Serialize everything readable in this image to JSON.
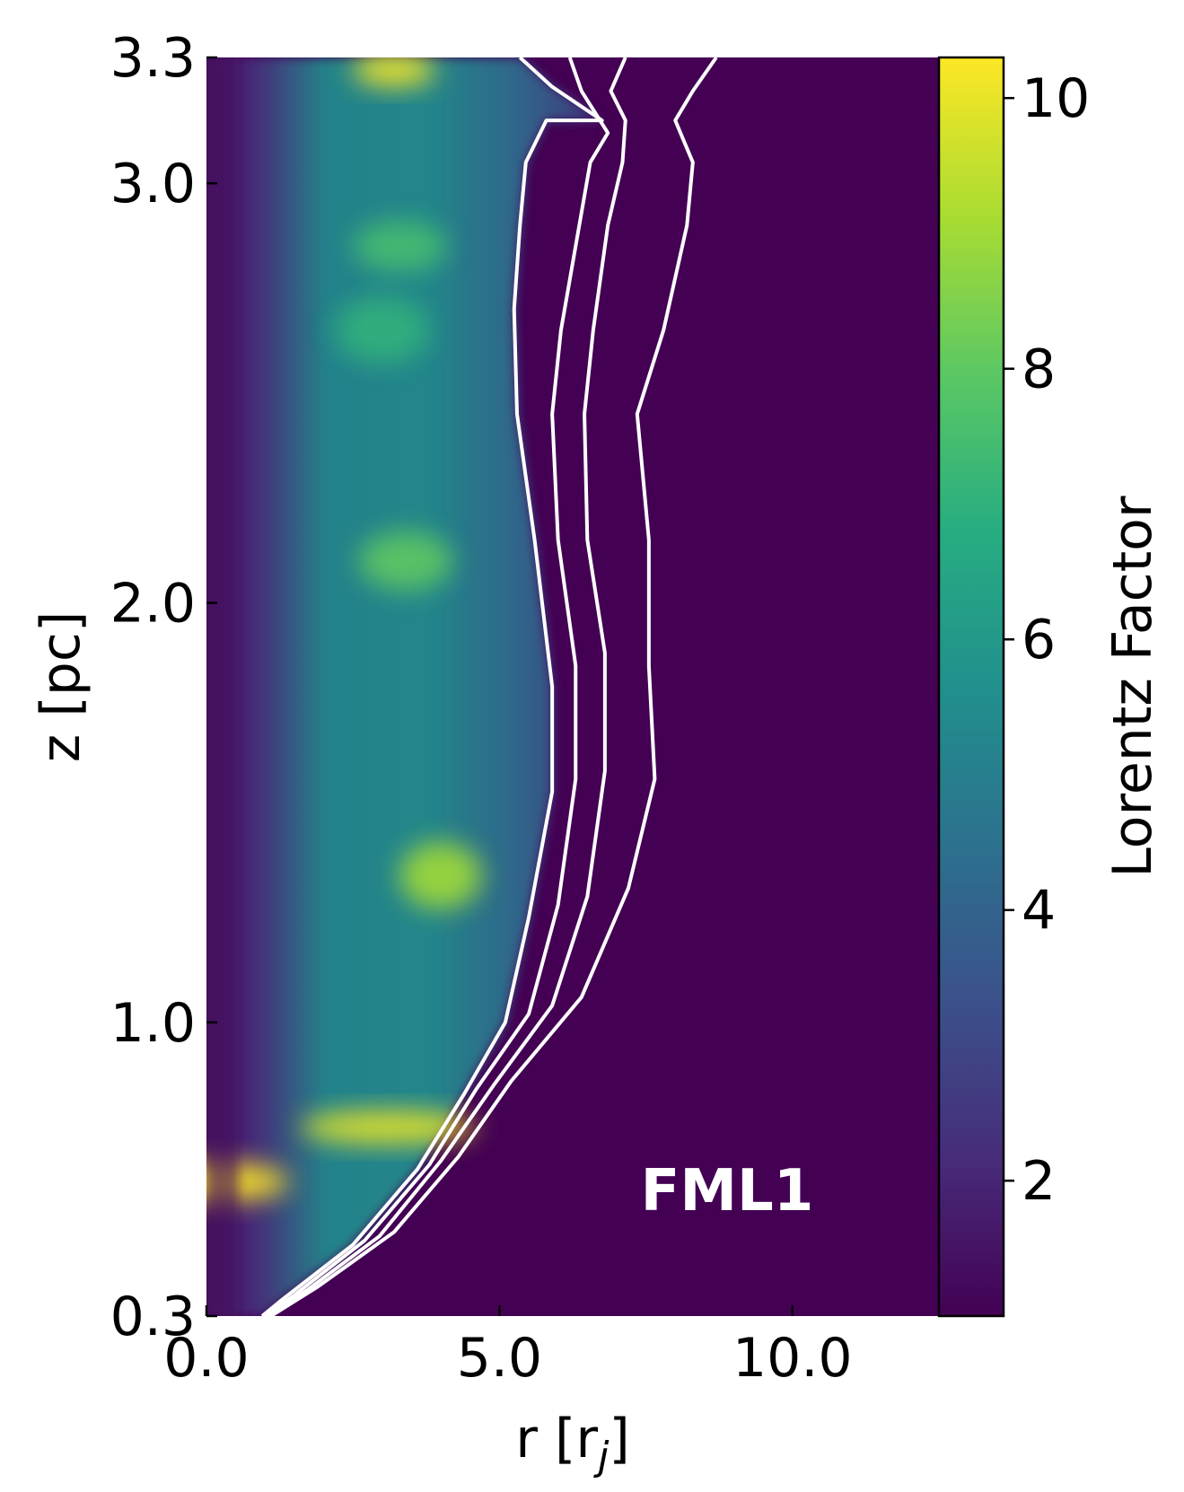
{
  "chart_data": {
    "type": "heatmap",
    "title": "",
    "annotation": "FML1",
    "xlabel": "r [r",
    "xlabel_sub": "j",
    "xlabel_close": "]",
    "ylabel": "z [pc]",
    "xlim": [
      0.0,
      12.5
    ],
    "ylim": [
      0.3,
      3.3
    ],
    "x_ticks": [
      {
        "value": 0.0,
        "label": "0.0"
      },
      {
        "value": 5.0,
        "label": "5.0"
      },
      {
        "value": 10.0,
        "label": "10.0"
      }
    ],
    "y_ticks": [
      {
        "value": 0.3,
        "label": "0.3"
      },
      {
        "value": 1.0,
        "label": "1.0"
      },
      {
        "value": 2.0,
        "label": "2.0"
      },
      {
        "value": 3.0,
        "label": "3.0"
      },
      {
        "value": 3.3,
        "label": "3.3"
      }
    ],
    "colorbar": {
      "label": "Lorentz Factor",
      "min": 1.0,
      "max": 10.3,
      "colormap": "viridis",
      "ticks": [
        {
          "value": 2,
          "label": "2"
        },
        {
          "value": 4,
          "label": "4"
        },
        {
          "value": 6,
          "label": "6"
        },
        {
          "value": 8,
          "label": "8"
        },
        {
          "value": 10,
          "label": "10"
        }
      ]
    },
    "colors": {
      "background": "#440154",
      "contour": "#ffffff",
      "annotation": "#ffffff",
      "stops": [
        "#440154",
        "#472c7a",
        "#3b518b",
        "#2c718e",
        "#21908d",
        "#27ad81",
        "#5cc863",
        "#aadc32",
        "#fde725"
      ]
    },
    "contour_lines": [
      {
        "points": [
          [
            0.95,
            0.3
          ],
          [
            1.3,
            0.34
          ],
          [
            2.5,
            0.47
          ],
          [
            3.6,
            0.65
          ],
          [
            4.4,
            0.83
          ],
          [
            5.1,
            1.0
          ],
          [
            5.5,
            1.25
          ],
          [
            5.9,
            1.55
          ],
          [
            5.9,
            1.8
          ],
          [
            5.6,
            2.15
          ],
          [
            5.3,
            2.45
          ],
          [
            5.25,
            2.7
          ],
          [
            5.35,
            2.9
          ],
          [
            5.45,
            3.05
          ],
          [
            5.8,
            3.15
          ],
          [
            6.75,
            3.15
          ],
          [
            5.9,
            3.23
          ],
          [
            5.35,
            3.3
          ]
        ]
      },
      {
        "points": [
          [
            1.0,
            0.3
          ],
          [
            1.5,
            0.35
          ],
          [
            2.7,
            0.48
          ],
          [
            3.8,
            0.66
          ],
          [
            4.6,
            0.84
          ],
          [
            5.5,
            1.02
          ],
          [
            6.0,
            1.28
          ],
          [
            6.3,
            1.58
          ],
          [
            6.3,
            1.85
          ],
          [
            6.0,
            2.15
          ],
          [
            5.9,
            2.45
          ],
          [
            6.05,
            2.65
          ],
          [
            6.3,
            2.85
          ],
          [
            6.55,
            3.05
          ],
          [
            6.85,
            3.12
          ],
          [
            6.4,
            3.22
          ],
          [
            6.2,
            3.3
          ]
        ]
      },
      {
        "points": [
          [
            1.05,
            0.3
          ],
          [
            1.7,
            0.36
          ],
          [
            2.95,
            0.49
          ],
          [
            4.0,
            0.67
          ],
          [
            4.9,
            0.85
          ],
          [
            5.9,
            1.04
          ],
          [
            6.5,
            1.3
          ],
          [
            6.8,
            1.6
          ],
          [
            6.8,
            1.88
          ],
          [
            6.5,
            2.15
          ],
          [
            6.45,
            2.45
          ],
          [
            6.6,
            2.65
          ],
          [
            6.85,
            2.9
          ],
          [
            7.1,
            3.05
          ],
          [
            7.15,
            3.15
          ],
          [
            6.9,
            3.22
          ],
          [
            7.15,
            3.3
          ]
        ]
      },
      {
        "points": [
          [
            1.1,
            0.3
          ],
          [
            1.9,
            0.37
          ],
          [
            3.2,
            0.5
          ],
          [
            4.3,
            0.68
          ],
          [
            5.2,
            0.86
          ],
          [
            6.4,
            1.06
          ],
          [
            7.2,
            1.32
          ],
          [
            7.65,
            1.58
          ],
          [
            7.55,
            1.85
          ],
          [
            7.55,
            2.15
          ],
          [
            7.35,
            2.45
          ],
          [
            7.8,
            2.65
          ],
          [
            8.2,
            2.9
          ],
          [
            8.3,
            3.05
          ],
          [
            8.0,
            3.15
          ],
          [
            8.3,
            3.22
          ],
          [
            8.7,
            3.3
          ]
        ]
      }
    ],
    "hotspots": [
      {
        "r": 0.1,
        "z": 0.62,
        "rr": 1.3,
        "zr": 0.05,
        "v": 10.3
      },
      {
        "r": 3.1,
        "z": 0.75,
        "rr": 1.5,
        "zr": 0.04,
        "v": 10.0
      },
      {
        "r": 4.0,
        "z": 1.35,
        "rr": 0.7,
        "zr": 0.08,
        "v": 9.0
      },
      {
        "r": 3.4,
        "z": 2.1,
        "rr": 0.8,
        "zr": 0.07,
        "v": 8.0
      },
      {
        "r": 3.3,
        "z": 2.85,
        "rr": 0.8,
        "zr": 0.06,
        "v": 7.5
      },
      {
        "r": 3.2,
        "z": 3.27,
        "rr": 0.7,
        "zr": 0.04,
        "v": 10.2
      },
      {
        "r": 3.0,
        "z": 2.65,
        "rr": 0.8,
        "zr": 0.08,
        "v": 7.0
      }
    ]
  }
}
